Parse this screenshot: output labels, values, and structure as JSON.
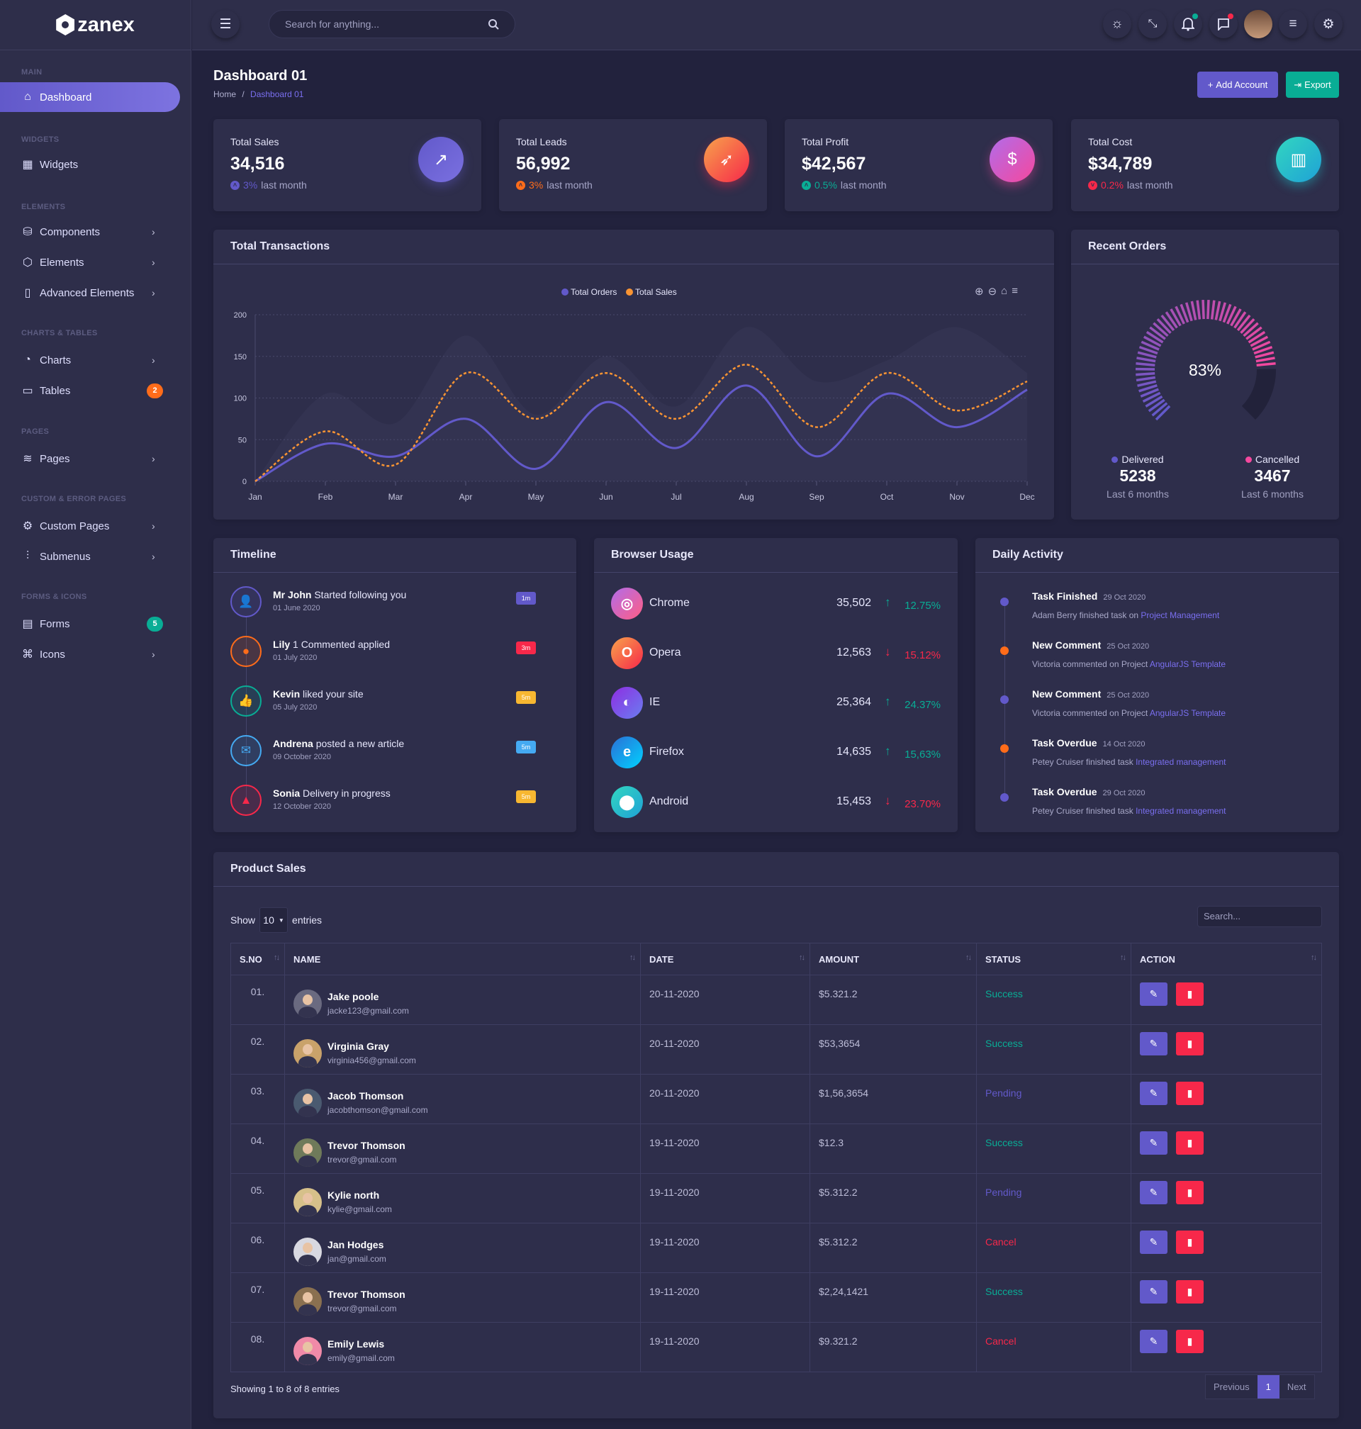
{
  "brand": {
    "name": "zanex"
  },
  "header": {
    "search_placeholder": "Search for anything...",
    "icons": [
      "sun-icon",
      "fullscreen-exit-icon",
      "bell-icon",
      "message-icon",
      "user-avatar",
      "menu-icon",
      "gear-icon"
    ]
  },
  "sidebar": {
    "sections": [
      {
        "label": "Main",
        "items": [
          {
            "label": "Dashboard",
            "icon": "home",
            "active": true
          }
        ]
      },
      {
        "label": "Widgets",
        "items": [
          {
            "label": "Widgets",
            "icon": "grid"
          }
        ]
      },
      {
        "label": "Elements",
        "items": [
          {
            "label": "Components",
            "icon": "database",
            "chevron": true
          },
          {
            "label": "Elements",
            "icon": "box",
            "chevron": true
          },
          {
            "label": "Advanced Elements",
            "icon": "file",
            "chevron": true
          }
        ]
      },
      {
        "label": "Charts & Tables",
        "items": [
          {
            "label": "Charts",
            "icon": "pie",
            "chevron": true
          },
          {
            "label": "Tables",
            "icon": "clipboard",
            "badge": "2",
            "badge_color": "#ff6c1a"
          }
        ]
      },
      {
        "label": "Pages",
        "items": [
          {
            "label": "Pages",
            "icon": "layers",
            "chevron": true
          }
        ]
      },
      {
        "label": "Custom & Error Pages",
        "items": [
          {
            "label": "Custom Pages",
            "icon": "settings",
            "chevron": true
          },
          {
            "label": "Submenus",
            "icon": "sliders",
            "chevron": true
          }
        ]
      },
      {
        "label": "Forms & Icons",
        "items": [
          {
            "label": "Forms",
            "icon": "doc",
            "badge": "5",
            "badge_color": "#09ad95"
          },
          {
            "label": "Icons",
            "icon": "command",
            "chevron": true
          }
        ]
      }
    ]
  },
  "page": {
    "title": "Dashboard 01",
    "breadcrumb": [
      "Home",
      "Dashboard 01"
    ],
    "add_account": "Add Account",
    "export": "Export"
  },
  "stats": [
    {
      "label": "Total Sales",
      "value": "34,516",
      "change": "3%",
      "suffix": "last month",
      "color": "#6259ca",
      "icon": "trend"
    },
    {
      "label": "Total Leads",
      "value": "56,992",
      "change": "3%",
      "suffix": "last month",
      "color": "#ff6c1a",
      "icon": "rocket"
    },
    {
      "label": "Total Profit",
      "value": "$42,567",
      "change": "0.5%",
      "suffix": "last month",
      "color": "#09ad95",
      "icon": "dollar"
    },
    {
      "label": "Total Cost",
      "value": "$34,789",
      "change": "0.2%",
      "suffix": "last month",
      "color": "#f7284a",
      "icon": "briefcase"
    }
  ],
  "transactions": {
    "title": "Total Transactions"
  },
  "chart_data": {
    "type": "line",
    "title": "Total Transactions",
    "categories": [
      "Jan",
      "Feb",
      "Mar",
      "Apr",
      "May",
      "Jun",
      "Jul",
      "Aug",
      "Sep",
      "Oct",
      "Nov",
      "Dec"
    ],
    "series": [
      {
        "name": "Total Orders",
        "color": "#6259ca",
        "values": [
          0,
          45,
          30,
          75,
          15,
          95,
          40,
          115,
          30,
          105,
          65,
          110
        ]
      },
      {
        "name": "Total Sales",
        "color": "#f99433",
        "values": [
          0,
          60,
          20,
          130,
          75,
          130,
          75,
          140,
          65,
          130,
          85,
          120
        ]
      }
    ],
    "shadow_area_values": [
      0,
      105,
      70,
      175,
      80,
      150,
      90,
      185,
      120,
      145,
      185,
      130
    ],
    "yticks": [
      "0",
      "50",
      "100",
      "150",
      "200"
    ],
    "ylim": [
      0,
      200
    ],
    "grid": true,
    "legend": "top-center"
  },
  "recent_orders": {
    "title": "Recent Orders",
    "percent": 83,
    "percent_label": "83%",
    "delivered": {
      "label": "Delivered",
      "value": "5238",
      "sub": "Last 6 months",
      "color": "#6259ca"
    },
    "cancelled": {
      "label": "Cancelled",
      "value": "3467",
      "sub": "Last 6 months",
      "color": "#f5489e"
    }
  },
  "timeline": {
    "title": "Timeline",
    "items": [
      {
        "name": "Mr John",
        "text": "Started following you",
        "date": "01 June 2020",
        "badge": "1m",
        "color": "#6259ca",
        "badge_color": "#6259ca",
        "icon": "user-plus"
      },
      {
        "name": "Lily",
        "text": "1 Commented applied",
        "date": "01 July 2020",
        "badge": "3m",
        "color": "#ff6c1a",
        "badge_color": "#f7284a",
        "icon": "comment"
      },
      {
        "name": "Kevin",
        "text": "liked your site",
        "date": "05 July 2020",
        "badge": "5m",
        "color": "#09ad95",
        "badge_color": "#f7b731",
        "icon": "thumbs-up"
      },
      {
        "name": "Andrena",
        "text": "posted a new article",
        "date": "09 October 2020",
        "badge": "5m",
        "color": "#45aaf2",
        "badge_color": "#45aaf2",
        "icon": "mail"
      },
      {
        "name": "Sonia",
        "text": "Delivery in progress",
        "date": "12 October 2020",
        "badge": "5m",
        "color": "#f7284a",
        "badge_color": "#f7b731",
        "icon": "bag"
      }
    ]
  },
  "browser_usage": {
    "title": "Browser Usage",
    "items": [
      {
        "name": "Chrome",
        "value": "35,502",
        "pct": "12.75%",
        "trend": "up",
        "grad": "linear-gradient(135deg,#b16cea,#ff5e84)"
      },
      {
        "name": "Opera",
        "value": "12,563",
        "pct": "15.12%",
        "trend": "down",
        "grad": "linear-gradient(135deg,#f7a34b,#f7284a)"
      },
      {
        "name": "IE",
        "value": "25,364",
        "pct": "24.37%",
        "trend": "up",
        "grad": "linear-gradient(135deg,#8e2de2,#6a7ef0)"
      },
      {
        "name": "Firefox",
        "value": "14,635",
        "pct": "15,63%",
        "trend": "up",
        "grad": "linear-gradient(135deg,#2b6fd6,#00d2ff)"
      },
      {
        "name": "Android",
        "value": "15,453",
        "pct": "23.70%",
        "trend": "down",
        "grad": "linear-gradient(135deg,#32d6c0,#1fa2d6)"
      }
    ]
  },
  "daily_activity": {
    "title": "Daily Activity",
    "items": [
      {
        "title": "Task Finished",
        "date": "29 Oct 2020",
        "desc": "Adam Berry finished task on",
        "link": "Project Management",
        "color": "#6259ca"
      },
      {
        "title": "New Comment",
        "date": "25 Oct 2020",
        "desc": "Victoria commented on Project",
        "link": "AngularJS Template",
        "color": "#ff6c1a"
      },
      {
        "title": "New Comment",
        "date": "25 Oct 2020",
        "desc": "Victoria commented on Project",
        "link": "AngularJS Template",
        "color": "#6259ca"
      },
      {
        "title": "Task Overdue",
        "date": "14 Oct 2020",
        "desc": "Petey Cruiser finished task",
        "link": "Integrated management",
        "color": "#ff6c1a"
      },
      {
        "title": "Task Overdue",
        "date": "29 Oct 2020",
        "desc": "Petey Cruiser finished task",
        "link": "Integrated management",
        "color": "#6259ca"
      }
    ]
  },
  "product_sales": {
    "title": "Product Sales",
    "show": "Show",
    "entries_value": "10",
    "entries": "entries",
    "search_placeholder": "Search...",
    "columns": [
      "S.NO",
      "NAME",
      "DATE",
      "AMOUNT",
      "STATUS",
      "ACTION"
    ],
    "rows": [
      {
        "sno": "01.",
        "name": "Jake poole",
        "email": "jacke123@gmail.com",
        "date": "20-11-2020",
        "amount": "$5.321.2",
        "status": "Success",
        "av": "#6a6a80"
      },
      {
        "sno": "02.",
        "name": "Virginia Gray",
        "email": "virginia456@gmail.com",
        "date": "20-11-2020",
        "amount": "$53,3654",
        "status": "Success",
        "av": "#c9a26a"
      },
      {
        "sno": "03.",
        "name": "Jacob Thomson",
        "email": "jacobthomson@gmail.com",
        "date": "20-11-2020",
        "amount": "$1,56,3654",
        "status": "Pending",
        "av": "#4a5a70"
      },
      {
        "sno": "04.",
        "name": "Trevor Thomson",
        "email": "trevor@gmail.com",
        "date": "19-11-2020",
        "amount": "$12.3",
        "status": "Success",
        "av": "#6f7a5a"
      },
      {
        "sno": "05.",
        "name": "Kylie north",
        "email": "kylie@gmail.com",
        "date": "19-11-2020",
        "amount": "$5.312.2",
        "status": "Pending",
        "av": "#d6c08a"
      },
      {
        "sno": "06.",
        "name": "Jan Hodges",
        "email": "jan@gmail.com",
        "date": "19-11-2020",
        "amount": "$5.312.2",
        "status": "Cancel",
        "av": "#d8d8e0"
      },
      {
        "sno": "07.",
        "name": "Trevor Thomson",
        "email": "trevor@gmail.com",
        "date": "19-11-2020",
        "amount": "$2,24,1421",
        "status": "Success",
        "av": "#8a7050"
      },
      {
        "sno": "08.",
        "name": "Emily Lewis",
        "email": "emily@gmail.com",
        "date": "19-11-2020",
        "amount": "$9.321.2",
        "status": "Cancel",
        "av": "#f08aa8"
      }
    ],
    "status_colors": {
      "Success": "#09ad95",
      "Pending": "#6259ca",
      "Cancel": "#f7284a"
    },
    "footer": "Showing 1 to 8 of 8 entries",
    "pagination": {
      "previous": "Previous",
      "current": "1",
      "next": "Next"
    }
  }
}
